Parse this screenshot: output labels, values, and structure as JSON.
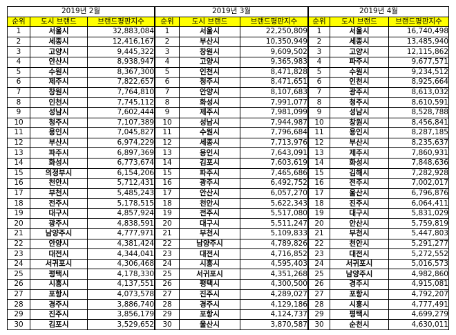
{
  "tables": [
    {
      "title": "2019년 2월",
      "headers": {
        "rank": "순위",
        "city": "도시 브랜드",
        "score": "브랜드평판지수"
      },
      "rows": [
        {
          "rank": "1",
          "city": "서울시",
          "score": "32,883,084"
        },
        {
          "rank": "2",
          "city": "세종시",
          "score": "12,416,167"
        },
        {
          "rank": "3",
          "city": "고양시",
          "score": "9,445,322"
        },
        {
          "rank": "4",
          "city": "안산시",
          "score": "8,938,947"
        },
        {
          "rank": "5",
          "city": "수원시",
          "score": "8,367,300"
        },
        {
          "rank": "6",
          "city": "제주시",
          "score": "7,822,657"
        },
        {
          "rank": "7",
          "city": "창원시",
          "score": "7,764,810"
        },
        {
          "rank": "8",
          "city": "인천시",
          "score": "7,745,112"
        },
        {
          "rank": "9",
          "city": "성남시",
          "score": "7,602,444"
        },
        {
          "rank": "10",
          "city": "청주시",
          "score": "7,107,389"
        },
        {
          "rank": "11",
          "city": "용인시",
          "score": "7,045,827"
        },
        {
          "rank": "12",
          "city": "부산시",
          "score": "6,974,229"
        },
        {
          "rank": "13",
          "city": "파주시",
          "score": "6,897,369"
        },
        {
          "rank": "14",
          "city": "화성시",
          "score": "6,773,674"
        },
        {
          "rank": "15",
          "city": "의정부시",
          "score": "6,154,206"
        },
        {
          "rank": "16",
          "city": "천안시",
          "score": "5,712,431"
        },
        {
          "rank": "17",
          "city": "부천시",
          "score": "5,485,243"
        },
        {
          "rank": "18",
          "city": "전주시",
          "score": "5,178,515"
        },
        {
          "rank": "19",
          "city": "대구시",
          "score": "4,857,924"
        },
        {
          "rank": "20",
          "city": "광주시",
          "score": "4,838,591"
        },
        {
          "rank": "21",
          "city": "남양주시",
          "score": "4,777,971"
        },
        {
          "rank": "22",
          "city": "안양시",
          "score": "4,381,424"
        },
        {
          "rank": "23",
          "city": "대전시",
          "score": "4,344,041"
        },
        {
          "rank": "24",
          "city": "서귀포시",
          "score": "4,306,468"
        },
        {
          "rank": "25",
          "city": "평택시",
          "score": "4,178,330"
        },
        {
          "rank": "26",
          "city": "시흥시",
          "score": "4,137,551"
        },
        {
          "rank": "27",
          "city": "포항시",
          "score": "4,073,578"
        },
        {
          "rank": "28",
          "city": "경주시",
          "score": "3,886,740"
        },
        {
          "rank": "29",
          "city": "진주시",
          "score": "3,856,179"
        },
        {
          "rank": "30",
          "city": "김포시",
          "score": "3,529,652"
        }
      ]
    },
    {
      "title": "2019년 3월",
      "headers": {
        "rank": "순위",
        "city": "도시 브랜드",
        "score": "브랜드평판지수"
      },
      "rows": [
        {
          "rank": "1",
          "city": "서울시",
          "score": "22,250,809"
        },
        {
          "rank": "2",
          "city": "부산시",
          "score": "10,350,949"
        },
        {
          "rank": "3",
          "city": "창원시",
          "score": "9,609,502"
        },
        {
          "rank": "4",
          "city": "고양시",
          "score": "9,365,983"
        },
        {
          "rank": "5",
          "city": "인천시",
          "score": "8,471,828"
        },
        {
          "rank": "6",
          "city": "청주시",
          "score": "8,471,651"
        },
        {
          "rank": "7",
          "city": "안양시",
          "score": "8,107,683"
        },
        {
          "rank": "8",
          "city": "화성시",
          "score": "7,991,077"
        },
        {
          "rank": "9",
          "city": "제주시",
          "score": "7,981,099"
        },
        {
          "rank": "10",
          "city": "성남시",
          "score": "7,944,987"
        },
        {
          "rank": "11",
          "city": "수원시",
          "score": "7,796,684"
        },
        {
          "rank": "12",
          "city": "세종시",
          "score": "7,713,976"
        },
        {
          "rank": "13",
          "city": "용인시",
          "score": "7,643,091"
        },
        {
          "rank": "14",
          "city": "김포시",
          "score": "7,603,619"
        },
        {
          "rank": "15",
          "city": "파주시",
          "score": "7,465,686"
        },
        {
          "rank": "16",
          "city": "광주시",
          "score": "6,492,752"
        },
        {
          "rank": "17",
          "city": "안산시",
          "score": "6,057,270"
        },
        {
          "rank": "18",
          "city": "천안시",
          "score": "5,622,343"
        },
        {
          "rank": "19",
          "city": "전주시",
          "score": "5,517,080"
        },
        {
          "rank": "20",
          "city": "대구시",
          "score": "5,511,247"
        },
        {
          "rank": "21",
          "city": "부천시",
          "score": "5,109,833"
        },
        {
          "rank": "22",
          "city": "남양주시",
          "score": "4,789,826"
        },
        {
          "rank": "23",
          "city": "대전시",
          "score": "4,716,852"
        },
        {
          "rank": "24",
          "city": "시흥시",
          "score": "4,595,403"
        },
        {
          "rank": "25",
          "city": "서귀포시",
          "score": "4,351,268"
        },
        {
          "rank": "26",
          "city": "평택시",
          "score": "4,300,500"
        },
        {
          "rank": "27",
          "city": "진주시",
          "score": "4,289,027"
        },
        {
          "rank": "28",
          "city": "경주시",
          "score": "4,129,186"
        },
        {
          "rank": "29",
          "city": "포항시",
          "score": "4,124,737"
        },
        {
          "rank": "30",
          "city": "울산시",
          "score": "3,870,587"
        }
      ]
    },
    {
      "title": "2019년 4월",
      "headers": {
        "rank": "순위",
        "city": "도시 브랜드",
        "score": "브랜드평판지수"
      },
      "rows": [
        {
          "rank": "1",
          "city": "서울시",
          "score": "16,740,498"
        },
        {
          "rank": "2",
          "city": "세종시",
          "score": "13,485,940"
        },
        {
          "rank": "3",
          "city": "고양시",
          "score": "12,115,862"
        },
        {
          "rank": "4",
          "city": "파주시",
          "score": "9,677,571"
        },
        {
          "rank": "5",
          "city": "수원시",
          "score": "9,234,512"
        },
        {
          "rank": "6",
          "city": "인천시",
          "score": "8,925,664"
        },
        {
          "rank": "7",
          "city": "광주시",
          "score": "8,613,032"
        },
        {
          "rank": "8",
          "city": "청주시",
          "score": "8,610,591"
        },
        {
          "rank": "9",
          "city": "성남시",
          "score": "8,528,788"
        },
        {
          "rank": "10",
          "city": "창원시",
          "score": "8,456,841"
        },
        {
          "rank": "11",
          "city": "용인시",
          "score": "8,287,185"
        },
        {
          "rank": "12",
          "city": "부산시",
          "score": "8,235,637"
        },
        {
          "rank": "13",
          "city": "제주시",
          "score": "7,860,931"
        },
        {
          "rank": "14",
          "city": "화성시",
          "score": "7,848,636"
        },
        {
          "rank": "15",
          "city": "김해시",
          "score": "7,282,928"
        },
        {
          "rank": "16",
          "city": "전주시",
          "score": "7,002,017"
        },
        {
          "rank": "17",
          "city": "울산시",
          "score": "6,796,876"
        },
        {
          "rank": "18",
          "city": "진주시",
          "score": "6,064,411"
        },
        {
          "rank": "19",
          "city": "대구시",
          "score": "5,831,029"
        },
        {
          "rank": "20",
          "city": "안산시",
          "score": "5,759,819"
        },
        {
          "rank": "21",
          "city": "부천시",
          "score": "5,447,803"
        },
        {
          "rank": "22",
          "city": "천안시",
          "score": "5,291,277"
        },
        {
          "rank": "23",
          "city": "대전시",
          "score": "5,272,552"
        },
        {
          "rank": "24",
          "city": "서귀포시",
          "score": "5,016,573"
        },
        {
          "rank": "25",
          "city": "남양주시",
          "score": "4,982,860"
        },
        {
          "rank": "26",
          "city": "경주시",
          "score": "4,915,081"
        },
        {
          "rank": "27",
          "city": "포항시",
          "score": "4,792,207"
        },
        {
          "rank": "28",
          "city": "시흥시",
          "score": "4,777,491"
        },
        {
          "rank": "29",
          "city": "평택시",
          "score": "4,699,279"
        },
        {
          "rank": "30",
          "city": "순천시",
          "score": "4,630,011"
        }
      ]
    }
  ],
  "colors": {
    "header_bg": "#ffff00",
    "border": "#000000",
    "background": "#ffffff"
  }
}
